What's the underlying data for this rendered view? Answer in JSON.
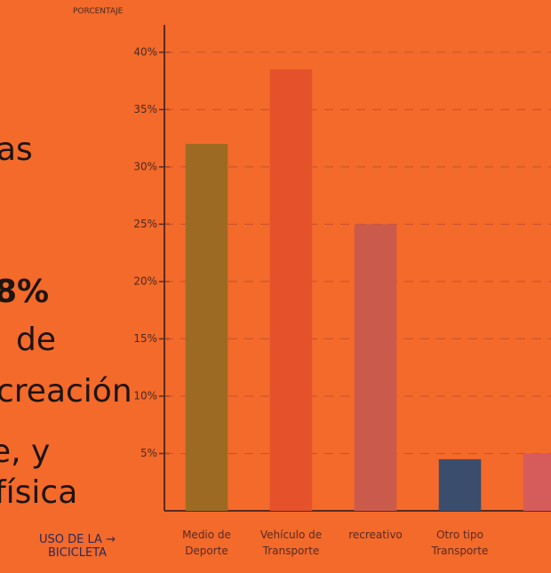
{
  "chart_data": {
    "type": "bar",
    "y_label": "PORCENTAJE",
    "x_label": "USO DE LA → BICICLETA",
    "categories": [
      "Medio de Deporte",
      "Vehículo de Transporte",
      "recreativo",
      "Otro tipo Transporte",
      null
    ],
    "values": [
      32,
      38.5,
      25,
      4.5,
      5
    ],
    "colors": [
      "#9c6a22",
      "#e4512b",
      "#c95a4c",
      "#3b4d6c",
      "#d65b5b"
    ],
    "ylim": [
      0,
      42
    ],
    "yticks": [
      {
        "value": 5,
        "label": "5%"
      },
      {
        "value": 10,
        "label": "10%"
      },
      {
        "value": 15,
        "label": "15%"
      },
      {
        "value": 20,
        "label": "20%"
      },
      {
        "value": 25,
        "label": "25%"
      },
      {
        "value": 30,
        "label": "30%"
      },
      {
        "value": 35,
        "label": "35%"
      },
      {
        "value": 40,
        "label": "40%"
      }
    ],
    "grid": true
  },
  "side_text": [
    "as",
    "8%",
    "de",
    "creación",
    "e, y",
    "física"
  ]
}
